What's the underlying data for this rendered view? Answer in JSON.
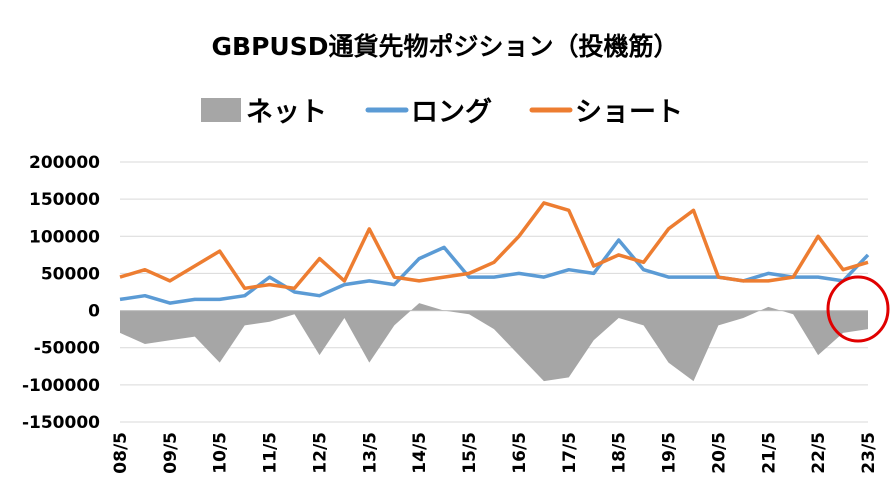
{
  "chart_data": {
    "type": "line",
    "title": "GBPUSD通貨先物ポジション（投機筋）",
    "legend_position": "top",
    "colors": {
      "net": "#a6a6a6",
      "long": "#5b9bd5",
      "short": "#ed7d31",
      "highlight": "#e00000"
    },
    "ylim": [
      -150000,
      200000
    ],
    "y_ticks": [
      200000,
      150000,
      100000,
      50000,
      0,
      -50000,
      -100000,
      -150000
    ],
    "y_tick_labels": [
      "200000",
      "150000",
      "100000",
      "50000",
      "0",
      "-50000",
      "-100000",
      "-150000"
    ],
    "x_tick_labels": [
      "08/5",
      "09/5",
      "10/5",
      "11/5",
      "12/5",
      "13/5",
      "14/5",
      "15/5",
      "16/5",
      "17/5",
      "18/5",
      "19/5",
      "20/5",
      "21/5",
      "22/5",
      "23/5"
    ],
    "x": [
      "08/5",
      "08/11",
      "09/5",
      "09/11",
      "10/5",
      "10/11",
      "11/5",
      "11/11",
      "12/5",
      "12/11",
      "13/5",
      "13/11",
      "14/5",
      "14/11",
      "15/5",
      "15/11",
      "16/5",
      "16/11",
      "17/5",
      "17/11",
      "18/5",
      "18/11",
      "19/5",
      "19/11",
      "20/5",
      "20/11",
      "21/5",
      "21/11",
      "22/5",
      "22/11",
      "23/5"
    ],
    "series": [
      {
        "name": "ネット",
        "kind": "area",
        "values": [
          -30000,
          -45000,
          -40000,
          -35000,
          -70000,
          -20000,
          -15000,
          -5000,
          -60000,
          -10000,
          -70000,
          -20000,
          10000,
          0,
          -5000,
          -25000,
          -60000,
          -95000,
          -90000,
          -40000,
          -10000,
          -20000,
          -70000,
          -95000,
          -20000,
          -10000,
          5000,
          -5000,
          -60000,
          -30000,
          -25000
        ]
      },
      {
        "name": "ロング",
        "kind": "line",
        "values": [
          15000,
          20000,
          10000,
          15000,
          15000,
          20000,
          45000,
          25000,
          20000,
          35000,
          40000,
          35000,
          70000,
          85000,
          45000,
          45000,
          50000,
          45000,
          55000,
          50000,
          95000,
          55000,
          45000,
          45000,
          45000,
          40000,
          50000,
          45000,
          45000,
          40000,
          75000
        ]
      },
      {
        "name": "ショート",
        "kind": "line",
        "values": [
          45000,
          55000,
          40000,
          60000,
          80000,
          30000,
          35000,
          30000,
          70000,
          40000,
          110000,
          45000,
          40000,
          45000,
          50000,
          65000,
          100000,
          145000,
          135000,
          60000,
          75000,
          65000,
          110000,
          135000,
          45000,
          40000,
          40000,
          45000,
          100000,
          55000,
          65000
        ]
      }
    ]
  }
}
